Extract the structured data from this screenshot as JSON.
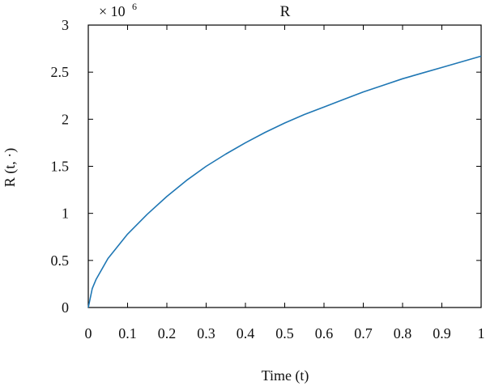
{
  "chart_data": {
    "type": "line",
    "title": "R",
    "xlabel": "Time (t)",
    "ylabel": "R (t, ·)",
    "y_multiplier_label": "× 10",
    "y_multiplier_exp": "6",
    "xlim": [
      0,
      1
    ],
    "ylim": [
      0,
      3
    ],
    "x_ticks": [
      "0",
      "0.1",
      "0.2",
      "0.3",
      "0.4",
      "0.5",
      "0.6",
      "0.7",
      "0.8",
      "0.9",
      "1"
    ],
    "y_ticks": [
      "0",
      "0.5",
      "1",
      "1.5",
      "2",
      "2.5",
      "3"
    ],
    "grid": false,
    "series": [
      {
        "color": "#1f77b4",
        "x": [
          0,
          0.01,
          0.02,
          0.05,
          0.1,
          0.15,
          0.2,
          0.25,
          0.3,
          0.35,
          0.4,
          0.45,
          0.5,
          0.55,
          0.6,
          0.65,
          0.7,
          0.75,
          0.8,
          0.85,
          0.9,
          0.95,
          1.0
        ],
        "values": [
          0,
          0.2,
          0.3,
          0.52,
          0.78,
          0.99,
          1.18,
          1.35,
          1.5,
          1.63,
          1.75,
          1.86,
          1.96,
          2.05,
          2.13,
          2.21,
          2.29,
          2.36,
          2.43,
          2.49,
          2.55,
          2.61,
          2.67
        ]
      }
    ]
  }
}
